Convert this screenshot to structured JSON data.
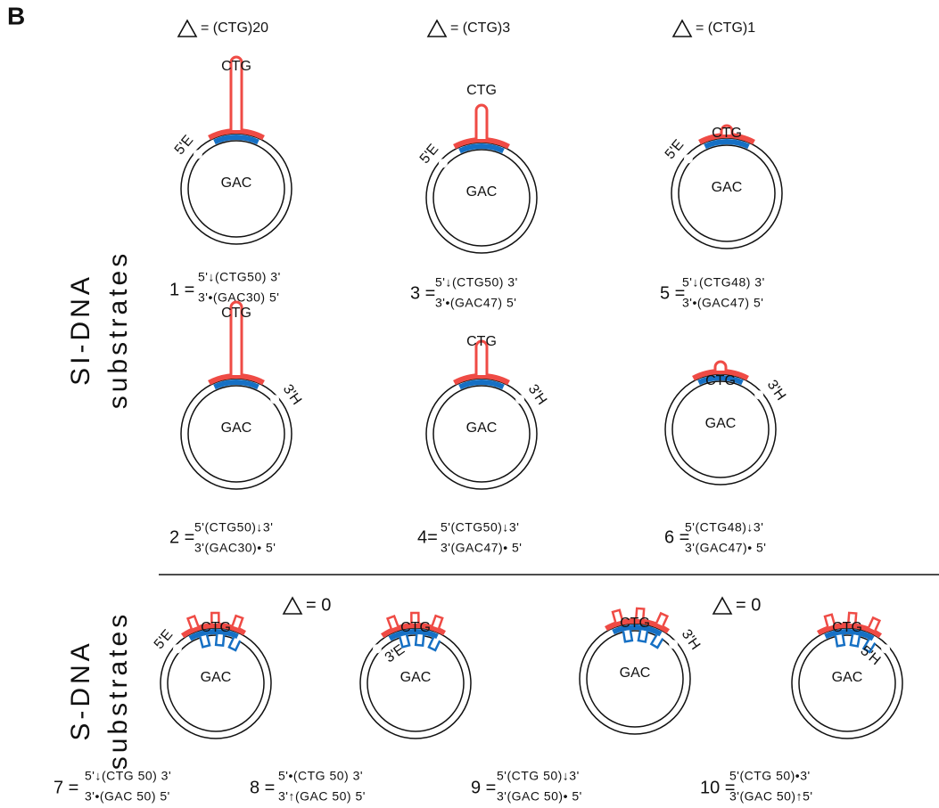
{
  "panel": "B",
  "deltas": [
    {
      "text": "= (CTG)20"
    },
    {
      "text": "= (CTG)3"
    },
    {
      "text": "= (CTG)1"
    },
    {
      "text": "= 0"
    },
    {
      "text": "= 0"
    }
  ],
  "groups": [
    {
      "lines": [
        "SI-DNA",
        "substrates"
      ]
    },
    {
      "lines": [
        "S-DNA",
        "substrates"
      ]
    }
  ],
  "substrates": [
    {
      "number": "1 =",
      "top": "5'↓(CTG50) 3'",
      "bottom": "3'•(GAC30) 5'",
      "top_strand": "CTG",
      "bottom_strand": "GAC",
      "end": "5'E"
    },
    {
      "number": "2 =",
      "top": "5'(CTG50)↓3'",
      "bottom": "3'(GAC30)• 5'",
      "top_strand": "CTG",
      "bottom_strand": "GAC",
      "end": "3'H"
    },
    {
      "number": "3 =",
      "top": "5'↓(CTG50) 3'",
      "bottom": "3'•(GAC47) 5'",
      "top_strand": "CTG",
      "bottom_strand": "GAC",
      "end": "5'E"
    },
    {
      "number": "4=",
      "top": "5'(CTG50)↓3'",
      "bottom": "3'(GAC47)• 5'",
      "top_strand": "CTG",
      "bottom_strand": "GAC",
      "end": "3'H"
    },
    {
      "number": "5 =",
      "top": "5'↓(CTG48) 3'",
      "bottom": "3'•(GAC47) 5'",
      "top_strand": "CTG",
      "bottom_strand": "GAC",
      "end": "5'E"
    },
    {
      "number": "6 =",
      "top": "5'(CTG48)↓3'",
      "bottom": "3'(GAC47)• 5'",
      "top_strand": "CTG",
      "bottom_strand": "GAC",
      "end": "3'H"
    },
    {
      "number": "7 =",
      "top": "5'↓(CTG 50) 3'",
      "bottom": "3'•(GAC 50) 5'",
      "top_strand": "CTG",
      "bottom_strand": "GAC",
      "end": "5'E"
    },
    {
      "number": "8 =",
      "top": "5'•(CTG 50) 3'",
      "bottom": "3'↑(GAC 50) 5'",
      "top_strand": "CTG",
      "bottom_strand": "GAC",
      "end": "3'E"
    },
    {
      "number": "9 =",
      "top": "5'(CTG 50)↓3'",
      "bottom": "3'(GAC 50)• 5'",
      "top_strand": "CTG",
      "bottom_strand": "GAC",
      "end": "3'H"
    },
    {
      "number": "10 =",
      "top": "5'(CTG 50)•3'",
      "bottom": "3'(GAC 50)↑5'",
      "top_strand": "CTG",
      "bottom_strand": "GAC",
      "end": "5'H"
    }
  ]
}
